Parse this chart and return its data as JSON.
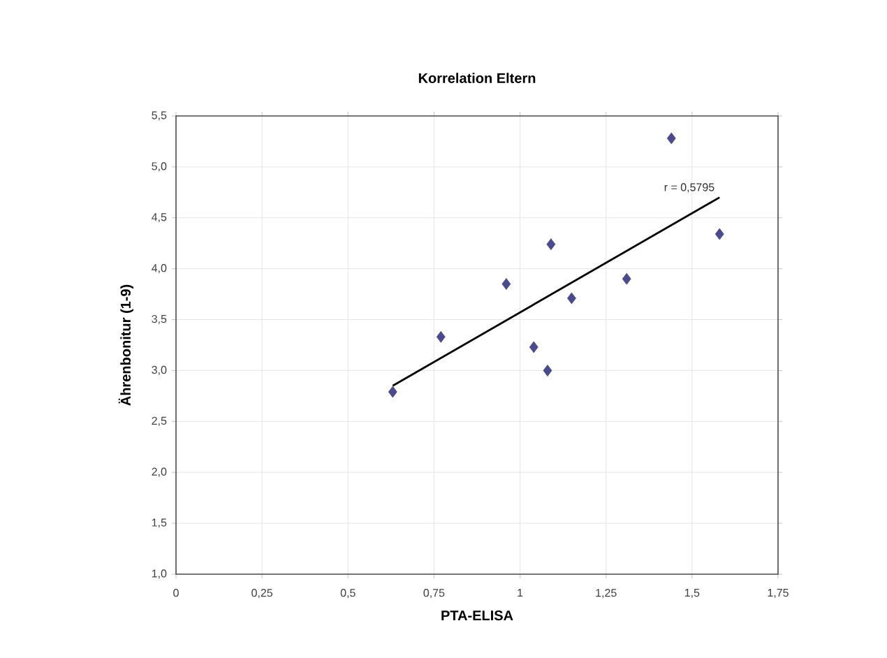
{
  "chart_data": {
    "type": "scatter",
    "title": "Korrelation Eltern",
    "xlabel": "PTA-ELISA",
    "ylabel": "Ährenbonitur (1-9)",
    "xlim": [
      0,
      1.75
    ],
    "ylim": [
      1.0,
      5.5
    ],
    "xticks": [
      0,
      {
        "value": 0.25,
        "label": "0,25"
      },
      {
        "value": 0.5,
        "label": "0,5"
      },
      {
        "value": 0.75,
        "label": "0,75"
      },
      1,
      {
        "value": 1.25,
        "label": "1,25"
      },
      {
        "value": 1.5,
        "label": "1,5"
      },
      {
        "value": 1.75,
        "label": "1,75"
      }
    ],
    "yticks": [
      {
        "value": 1.0,
        "label": "1,0"
      },
      {
        "value": 1.5,
        "label": "1,5"
      },
      {
        "value": 2.0,
        "label": "2,0"
      },
      {
        "value": 2.5,
        "label": "2,5"
      },
      {
        "value": 3.0,
        "label": "3,0"
      },
      {
        "value": 3.5,
        "label": "3,5"
      },
      {
        "value": 4.0,
        "label": "4,0"
      },
      {
        "value": 4.5,
        "label": "4,5"
      },
      {
        "value": 5.0,
        "label": "5,0"
      },
      {
        "value": 5.5,
        "label": "5,5"
      }
    ],
    "grid": true,
    "marker": "diamond",
    "series": [
      {
        "color": "#4b4a8c",
        "x": [
          0.63,
          0.77,
          0.96,
          1.04,
          1.08,
          1.09,
          1.15,
          1.31,
          1.44,
          1.58
        ],
        "values": [
          2.79,
          3.33,
          3.85,
          3.23,
          3.0,
          4.24,
          3.71,
          3.9,
          5.28,
          4.34
        ]
      },
      {
        "type": "line",
        "color": "#000000",
        "marker": "none",
        "x": [
          0.63,
          1.58
        ],
        "values": [
          2.85,
          4.7
        ]
      }
    ],
    "annotations": [
      "r = 0,5795"
    ]
  }
}
